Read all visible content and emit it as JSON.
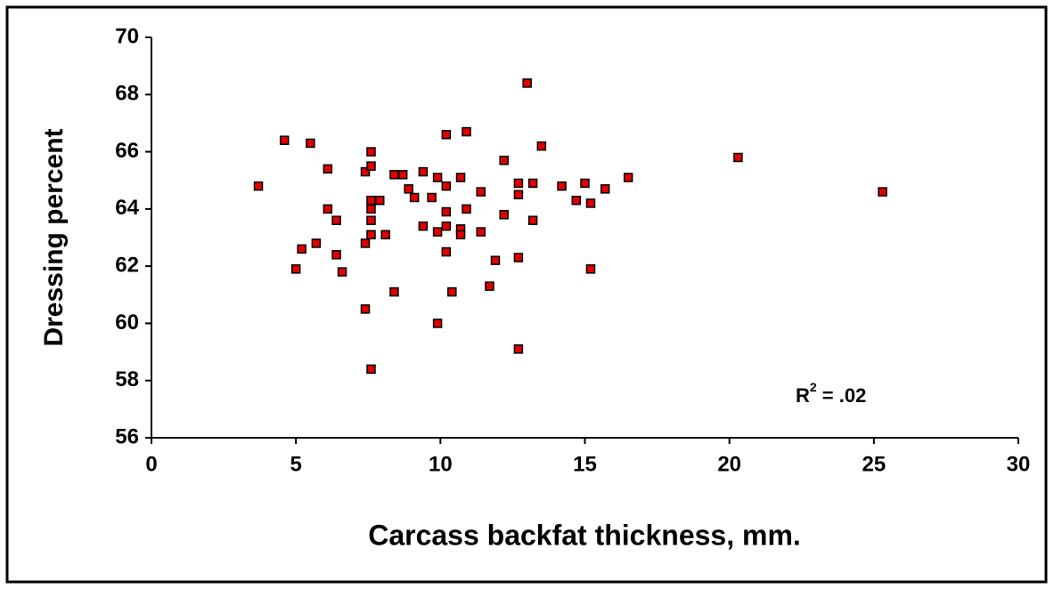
{
  "chart_data": {
    "type": "scatter",
    "x_label": "Carcass backfat thickness, mm.",
    "y_label": "Dressing percent",
    "annotation": {
      "base": "R",
      "superscript": "2",
      "rest": " = .02"
    },
    "color": "#e00000",
    "grid": false,
    "xlim": [
      0,
      30
    ],
    "xticks": [
      0,
      5,
      10,
      15,
      20,
      25,
      30
    ],
    "ylim": [
      56,
      70
    ],
    "yticks": [
      56,
      58,
      60,
      62,
      64,
      66,
      68,
      70
    ],
    "x": [
      3.7,
      4.6,
      5.5,
      5.0,
      5.2,
      5.7,
      6.1,
      6.1,
      6.4,
      6.4,
      6.6,
      7.4,
      7.6,
      7.6,
      7.6,
      7.6,
      7.6,
      7.6,
      7.4,
      7.4,
      7.6,
      7.9,
      8.1,
      8.4,
      8.4,
      8.7,
      8.9,
      9.1,
      9.4,
      9.4,
      9.7,
      9.9,
      9.9,
      9.9,
      10.2,
      10.2,
      10.2,
      10.2,
      10.2,
      10.4,
      10.7,
      10.7,
      10.7,
      10.9,
      10.9,
      11.4,
      11.4,
      11.7,
      11.9,
      12.2,
      12.2,
      12.7,
      12.7,
      12.7,
      12.7,
      13.0,
      13.2,
      13.2,
      13.5,
      14.2,
      14.7,
      15.0,
      15.2,
      15.2,
      15.7,
      16.5,
      20.3,
      25.3
    ],
    "values": [
      64.8,
      66.4,
      66.3,
      61.9,
      62.6,
      62.8,
      65.4,
      64.0,
      63.6,
      62.4,
      61.8,
      65.3,
      66.0,
      65.5,
      64.3,
      64.0,
      63.6,
      63.1,
      62.8,
      60.5,
      58.4,
      64.3,
      63.1,
      61.1,
      65.2,
      65.2,
      64.7,
      64.4,
      65.3,
      63.4,
      64.4,
      63.2,
      65.1,
      60.0,
      66.6,
      64.8,
      63.9,
      63.4,
      62.5,
      61.1,
      65.1,
      63.3,
      63.1,
      66.7,
      64.0,
      64.6,
      63.2,
      61.3,
      62.2,
      65.7,
      63.8,
      64.9,
      64.5,
      62.3,
      59.1,
      68.4,
      64.9,
      63.6,
      66.2,
      64.8,
      64.3,
      64.9,
      64.2,
      61.9,
      64.7,
      65.1,
      65.8,
      64.6
    ]
  }
}
